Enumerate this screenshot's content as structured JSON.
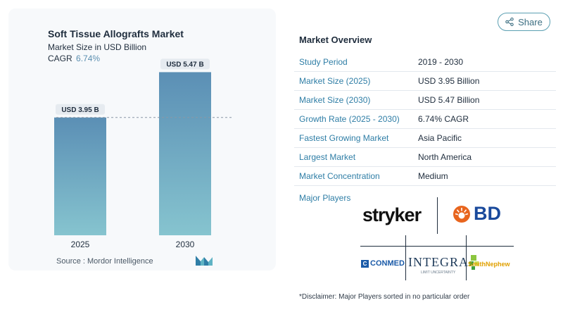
{
  "chart_data": {
    "type": "bar",
    "title": "Soft Tissue Allografts Market",
    "subtitle": "Market Size in USD Billion",
    "cagr_label": "CAGR",
    "cagr_value": "6.74%",
    "categories": [
      "2025",
      "2030"
    ],
    "values": [
      3.95,
      5.47
    ],
    "data_labels": [
      "USD 3.95 B",
      "USD 5.47 B"
    ],
    "ylim": [
      0,
      6.0
    ],
    "gradient_top": "#5b8fb5",
    "gradient_bottom": "#86c4cf",
    "reference_line": 3.95
  },
  "source": "Source :  Mordor Intelligence",
  "share": {
    "label": "Share",
    "icon": "share-icon"
  },
  "overview": {
    "title": "Market Overview",
    "rows": [
      {
        "label": "Study Period",
        "value": "2019 - 2030"
      },
      {
        "label": "Market Size (2025)",
        "value": "USD 3.95 Billion"
      },
      {
        "label": "Market Size (2030)",
        "value": "USD 5.47 Billion"
      },
      {
        "label": "Growth Rate (2025 - 2030)",
        "value": "6.74% CAGR"
      },
      {
        "label": "Fastest Growing Market",
        "value": "Asia Pacific"
      },
      {
        "label": "Largest Market",
        "value": "North America"
      },
      {
        "label": "Market Concentration",
        "value": "Medium"
      }
    ]
  },
  "players": {
    "label": "Major Players",
    "stryker": "stryker",
    "bd": "BD",
    "conmed": "CONMED",
    "integra": "INTEGRA",
    "integra_sub": "LIMIT UNCERTAINTY",
    "smith_nephew": "SmithNephew"
  },
  "disclaimer": "*Disclaimer: Major Players sorted in no particular order",
  "colors": {
    "accent": "#2f7ea6",
    "border": "#5b9fb2"
  }
}
